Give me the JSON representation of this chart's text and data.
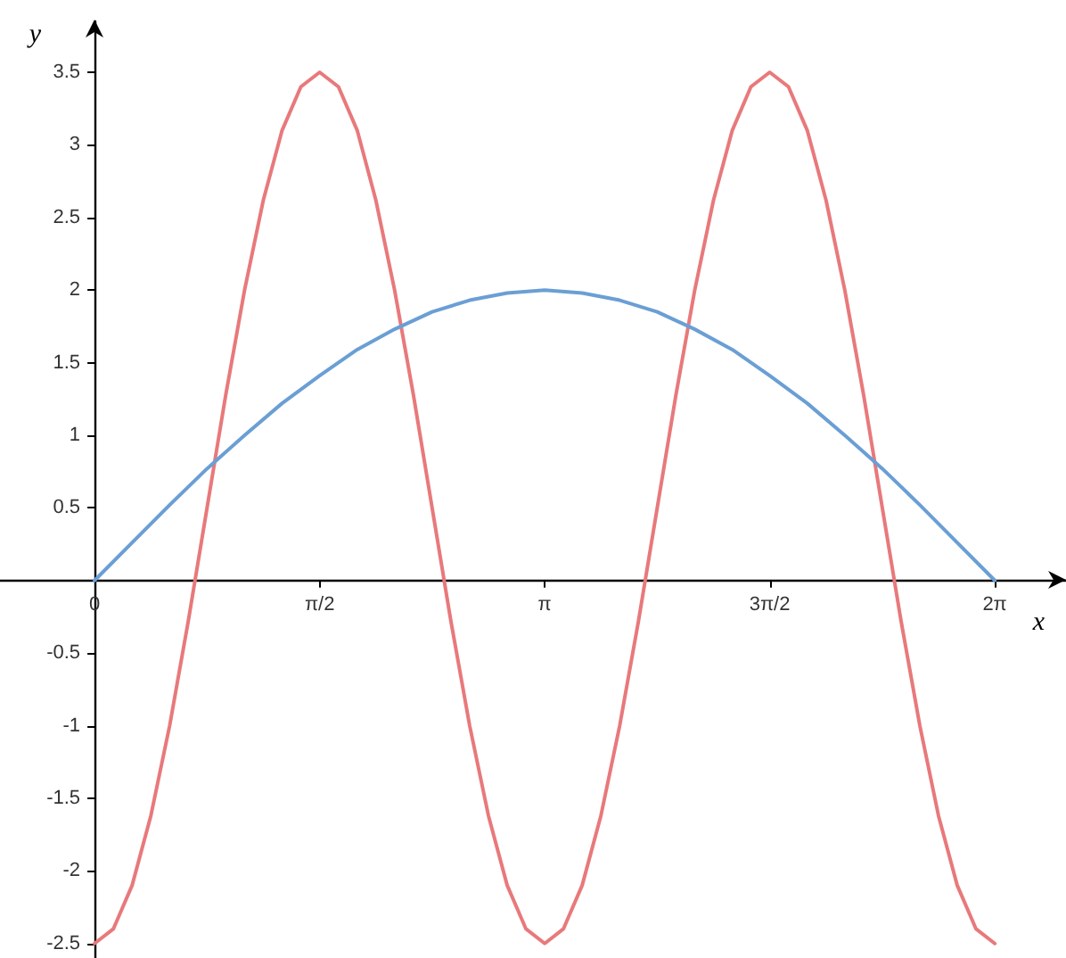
{
  "chart_data": {
    "type": "line",
    "xlabel": "x",
    "ylabel": "y",
    "xlim": [
      -0.66,
      6.78
    ],
    "ylim": [
      -2.6,
      3.85
    ],
    "xticks": [
      {
        "value": 0,
        "label": "0"
      },
      {
        "value": 1.571,
        "label": "π/2"
      },
      {
        "value": 3.142,
        "label": "π"
      },
      {
        "value": 4.712,
        "label": "3π/2"
      },
      {
        "value": 6.283,
        "label": "2π"
      }
    ],
    "yticks": [
      -2.5,
      -2,
      -1.5,
      -1,
      -0.5,
      0.5,
      1,
      1.5,
      2,
      2.5,
      3,
      3.5
    ],
    "grid": false,
    "marker": "none",
    "line_style": "solid",
    "series": [
      {
        "color": "#e8797b",
        "x": [
          0,
          0.131,
          0.262,
          0.393,
          0.524,
          0.654,
          0.785,
          0.916,
          1.047,
          1.178,
          1.309,
          1.44,
          1.571,
          1.702,
          1.833,
          1.963,
          2.094,
          2.225,
          2.356,
          2.487,
          2.618,
          2.749,
          2.88,
          3.011,
          3.142,
          3.272,
          3.403,
          3.534,
          3.665,
          3.796,
          3.927,
          4.058,
          4.189,
          4.32,
          4.451,
          4.581,
          4.712,
          4.843,
          4.974,
          5.105,
          5.236,
          5.367,
          5.498,
          5.629,
          5.76,
          5.89,
          6.021,
          6.152,
          6.283
        ],
        "values": [
          -2.5,
          -2.4,
          -2.1,
          -1.62,
          -1,
          -0.28,
          0.5,
          1.28,
          2,
          2.62,
          3.1,
          3.4,
          3.5,
          3.4,
          3.1,
          2.62,
          2,
          1.28,
          0.5,
          -0.28,
          -1,
          -1.62,
          -2.1,
          -2.4,
          -2.5,
          -2.4,
          -2.1,
          -1.62,
          -1,
          -0.28,
          0.5,
          1.28,
          2,
          2.62,
          3.1,
          3.4,
          3.5,
          3.4,
          3.1,
          2.62,
          2,
          1.28,
          0.5,
          -0.28,
          -1,
          -1.62,
          -2.1,
          -2.4,
          -2.5
        ]
      },
      {
        "color": "#6a9fd4",
        "x": [
          0,
          0.262,
          0.524,
          0.785,
          1.047,
          1.309,
          1.571,
          1.833,
          2.094,
          2.356,
          2.618,
          2.88,
          3.142,
          3.403,
          3.665,
          3.927,
          4.189,
          4.451,
          4.712,
          4.974,
          5.236,
          5.498,
          5.76,
          6.021,
          6.283
        ],
        "values": [
          0,
          0.26,
          0.52,
          0.77,
          1,
          1.22,
          1.41,
          1.59,
          1.73,
          1.85,
          1.93,
          1.98,
          2,
          1.98,
          1.93,
          1.85,
          1.73,
          1.59,
          1.41,
          1.22,
          1,
          0.77,
          0.52,
          0.26,
          0
        ]
      }
    ]
  }
}
